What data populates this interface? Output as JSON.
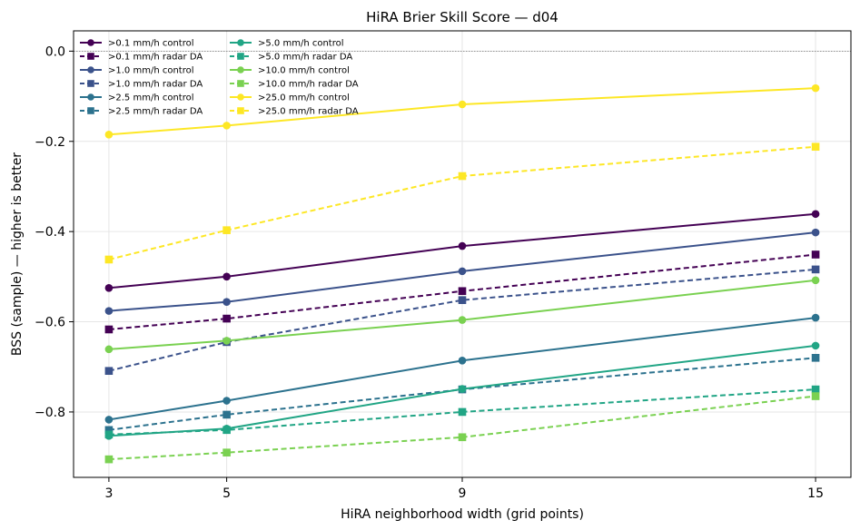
{
  "chart_data": {
    "type": "line",
    "title": "HiRA Brier Skill Score — d04",
    "xlabel": "HiRA neighborhood width (grid points)",
    "ylabel": "BSS (sample) — higher is better",
    "x": [
      3,
      5,
      9,
      15
    ],
    "xlim": [
      2.4,
      15.6
    ],
    "ylim": [
      -0.945,
      0.045
    ],
    "yticks": [
      0.0,
      -0.2,
      -0.4,
      -0.6,
      -0.8
    ],
    "ytick_labels": [
      "0.0",
      "−0.2",
      "−0.4",
      "−0.6",
      "−0.8"
    ],
    "xtick_labels": [
      "3",
      "5",
      "9",
      "15"
    ],
    "reference_line": 0.0,
    "grid": true,
    "legend_position": "top-left",
    "series": [
      {
        "name": ">0.1 mm/h control",
        "color": "#440154",
        "style": "solid",
        "marker": "circle",
        "values": [
          -0.525,
          -0.5,
          -0.432,
          -0.361
        ]
      },
      {
        "name": ">0.1 mm/h radar DA",
        "color": "#440154",
        "style": "dashed",
        "marker": "square",
        "values": [
          -0.617,
          -0.593,
          -0.532,
          -0.451
        ]
      },
      {
        "name": ">1.0 mm/h control",
        "color": "#3b528b",
        "style": "solid",
        "marker": "circle",
        "values": [
          -0.576,
          -0.556,
          -0.488,
          -0.402
        ]
      },
      {
        "name": ">1.0 mm/h radar DA",
        "color": "#3b528b",
        "style": "dashed",
        "marker": "square",
        "values": [
          -0.709,
          -0.645,
          -0.552,
          -0.484
        ]
      },
      {
        "name": ">2.5 mm/h control",
        "color": "#2c728e",
        "style": "solid",
        "marker": "circle",
        "values": [
          -0.817,
          -0.775,
          -0.686,
          -0.591
        ]
      },
      {
        "name": ">2.5 mm/h radar DA",
        "color": "#2c728e",
        "style": "dashed",
        "marker": "square",
        "values": [
          -0.84,
          -0.806,
          -0.75,
          -0.68
        ]
      },
      {
        "name": ">5.0 mm/h control",
        "color": "#21a585",
        "style": "solid",
        "marker": "circle",
        "values": [
          -0.853,
          -0.837,
          -0.749,
          -0.653
        ]
      },
      {
        "name": ">5.0 mm/h radar DA",
        "color": "#21a585",
        "style": "dashed",
        "marker": "square",
        "values": [
          -0.85,
          -0.84,
          -0.8,
          -0.75
        ]
      },
      {
        "name": ">10.0 mm/h control",
        "color": "#7ad151",
        "style": "solid",
        "marker": "circle",
        "values": [
          -0.661,
          -0.642,
          -0.596,
          -0.508
        ]
      },
      {
        "name": ">10.0 mm/h radar DA",
        "color": "#7ad151",
        "style": "dashed",
        "marker": "square",
        "values": [
          -0.905,
          -0.89,
          -0.856,
          -0.765
        ]
      },
      {
        "name": ">25.0 mm/h control",
        "color": "#fde725",
        "style": "solid",
        "marker": "circle",
        "values": [
          -0.185,
          -0.165,
          -0.118,
          -0.082
        ]
      },
      {
        "name": ">25.0 mm/h radar DA",
        "color": "#fde725",
        "style": "dashed",
        "marker": "square",
        "values": [
          -0.462,
          -0.397,
          -0.277,
          -0.212
        ]
      }
    ]
  }
}
